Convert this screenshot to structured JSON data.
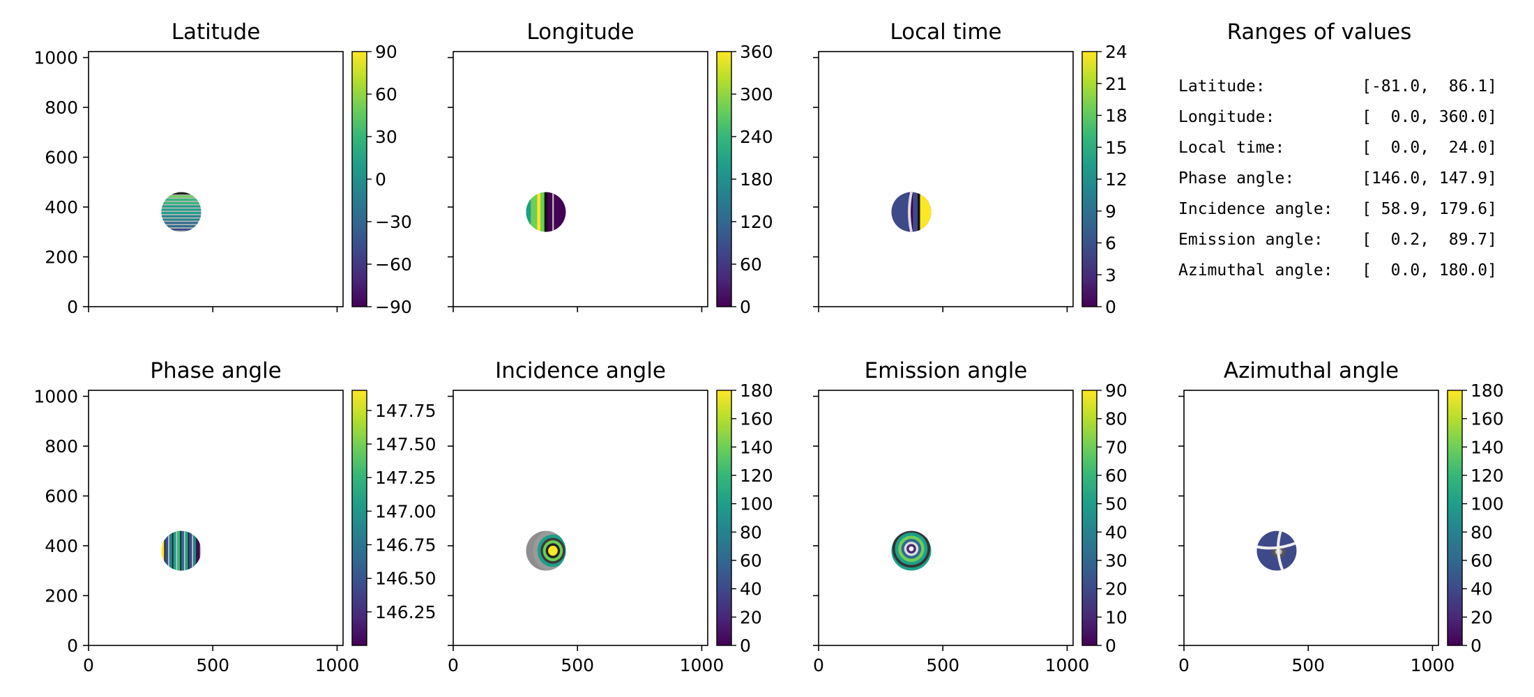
{
  "figure": {
    "ranges_title": "Ranges of values",
    "ranges": [
      "Latitude:          [-81.0,  86.1]",
      "Longitude:         [  0.0, 360.0]",
      "Local time:        [  0.0,  24.0]",
      "Phase angle:       [146.0, 147.9]",
      "Incidence angle:   [ 58.9, 179.6]",
      "Emission angle:    [  0.2,  89.7]",
      "Azimuthal angle:   [  0.0, 180.0]"
    ]
  },
  "colors": {
    "viridis": [
      "#440154",
      "#482878",
      "#3e4989",
      "#31688e",
      "#26828e",
      "#1f9e89",
      "#35b779",
      "#6ece58",
      "#b5de2b",
      "#fde725"
    ]
  },
  "chart_data": [
    {
      "id": "latitude",
      "type": "heatmap",
      "title": "Latitude",
      "xlim": [
        0,
        1024
      ],
      "ylim": [
        0,
        1024
      ],
      "xticks": [
        0,
        500,
        1000
      ],
      "yticks": [
        0,
        200,
        400,
        600,
        800,
        1000
      ],
      "show_xticklabels": false,
      "show_yticklabels": true,
      "disc": {
        "center": [
          373,
          380
        ],
        "radius": 80
      },
      "pattern": "horizontal-bands",
      "colorbar": {
        "range": [
          -90,
          90
        ],
        "ticks": [
          "90",
          "60",
          "30",
          "0",
          "−30",
          "−60",
          "−90"
        ],
        "tick_values": [
          90,
          60,
          30,
          0,
          -30,
          -60,
          -90
        ]
      }
    },
    {
      "id": "longitude",
      "type": "heatmap",
      "title": "Longitude",
      "xlim": [
        0,
        1024
      ],
      "ylim": [
        0,
        1024
      ],
      "xticks": [
        0,
        500,
        1000
      ],
      "yticks": [
        0,
        200,
        400,
        600,
        800,
        1000
      ],
      "show_xticklabels": false,
      "show_yticklabels": false,
      "disc": {
        "center": [
          373,
          380
        ],
        "radius": 80
      },
      "pattern": "vertical-halves",
      "colorbar": {
        "range": [
          0,
          360
        ],
        "ticks": [
          "360",
          "300",
          "240",
          "180",
          "120",
          "60",
          "0"
        ],
        "tick_values": [
          360,
          300,
          240,
          180,
          120,
          60,
          0
        ]
      }
    },
    {
      "id": "local-time",
      "type": "heatmap",
      "title": "Local time",
      "xlim": [
        0,
        1024
      ],
      "ylim": [
        0,
        1024
      ],
      "xticks": [
        0,
        500,
        1000
      ],
      "yticks": [
        0,
        200,
        400,
        600,
        800,
        1000
      ],
      "show_xticklabels": false,
      "show_yticklabels": false,
      "disc": {
        "center": [
          373,
          380
        ],
        "radius": 80
      },
      "pattern": "dark-with-bright-limb",
      "colorbar": {
        "range": [
          0,
          24
        ],
        "ticks": [
          "24",
          "21",
          "18",
          "15",
          "12",
          "9",
          "6",
          "3",
          "0"
        ],
        "tick_values": [
          24,
          21,
          18,
          15,
          12,
          9,
          6,
          3,
          0
        ]
      }
    },
    {
      "id": "phase-angle",
      "type": "heatmap",
      "title": "Phase angle",
      "xlim": [
        0,
        1024
      ],
      "ylim": [
        0,
        1024
      ],
      "xticks": [
        0,
        500,
        1000
      ],
      "yticks": [
        0,
        200,
        400,
        600,
        800,
        1000
      ],
      "show_xticklabels": true,
      "show_yticklabels": true,
      "disc": {
        "center": [
          373,
          380
        ],
        "radius": 80
      },
      "pattern": "vertical-bands",
      "colorbar": {
        "range": [
          146.0,
          147.9
        ],
        "ticks": [
          "147.75",
          "147.50",
          "147.25",
          "147.00",
          "146.75",
          "146.50",
          "146.25"
        ],
        "tick_values": [
          147.75,
          147.5,
          147.25,
          147.0,
          146.75,
          146.5,
          146.25
        ]
      }
    },
    {
      "id": "incidence-angle",
      "type": "heatmap",
      "title": "Incidence angle",
      "xlim": [
        0,
        1024
      ],
      "ylim": [
        0,
        1024
      ],
      "xticks": [
        0,
        500,
        1000
      ],
      "yticks": [
        0,
        200,
        400,
        600,
        800,
        1000
      ],
      "show_xticklabels": true,
      "show_yticklabels": false,
      "disc": {
        "center": [
          373,
          380
        ],
        "radius": 80
      },
      "pattern": "concentric-offset",
      "colorbar": {
        "range": [
          0,
          180
        ],
        "ticks": [
          "180",
          "160",
          "140",
          "120",
          "100",
          "80",
          "60",
          "40",
          "20",
          "0"
        ],
        "tick_values": [
          180,
          160,
          140,
          120,
          100,
          80,
          60,
          40,
          20,
          0
        ]
      }
    },
    {
      "id": "emission-angle",
      "type": "heatmap",
      "title": "Emission angle",
      "xlim": [
        0,
        1024
      ],
      "ylim": [
        0,
        1024
      ],
      "xticks": [
        0,
        500,
        1000
      ],
      "yticks": [
        0,
        200,
        400,
        600,
        800,
        1000
      ],
      "show_xticklabels": true,
      "show_yticklabels": false,
      "disc": {
        "center": [
          373,
          380
        ],
        "radius": 80
      },
      "pattern": "concentric-centered",
      "colorbar": {
        "range": [
          0,
          90
        ],
        "ticks": [
          "90",
          "80",
          "70",
          "60",
          "50",
          "40",
          "30",
          "20",
          "10",
          "0"
        ],
        "tick_values": [
          90,
          80,
          70,
          60,
          50,
          40,
          30,
          20,
          10,
          0
        ]
      }
    },
    {
      "id": "azimuthal-angle",
      "type": "heatmap",
      "title": "Azimuthal angle",
      "xlim": [
        0,
        1024
      ],
      "ylim": [
        0,
        1024
      ],
      "xticks": [
        0,
        500,
        1000
      ],
      "yticks": [
        0,
        200,
        400,
        600,
        800,
        1000
      ],
      "show_xticklabels": true,
      "show_yticklabels": false,
      "disc": {
        "center": [
          373,
          380
        ],
        "radius": 80
      },
      "pattern": "dark-with-arcs",
      "colorbar": {
        "range": [
          0,
          180
        ],
        "ticks": [
          "180",
          "160",
          "140",
          "120",
          "100",
          "80",
          "60",
          "40",
          "20",
          "0"
        ],
        "tick_values": [
          180,
          160,
          140,
          120,
          100,
          80,
          60,
          40,
          20,
          0
        ]
      }
    }
  ]
}
